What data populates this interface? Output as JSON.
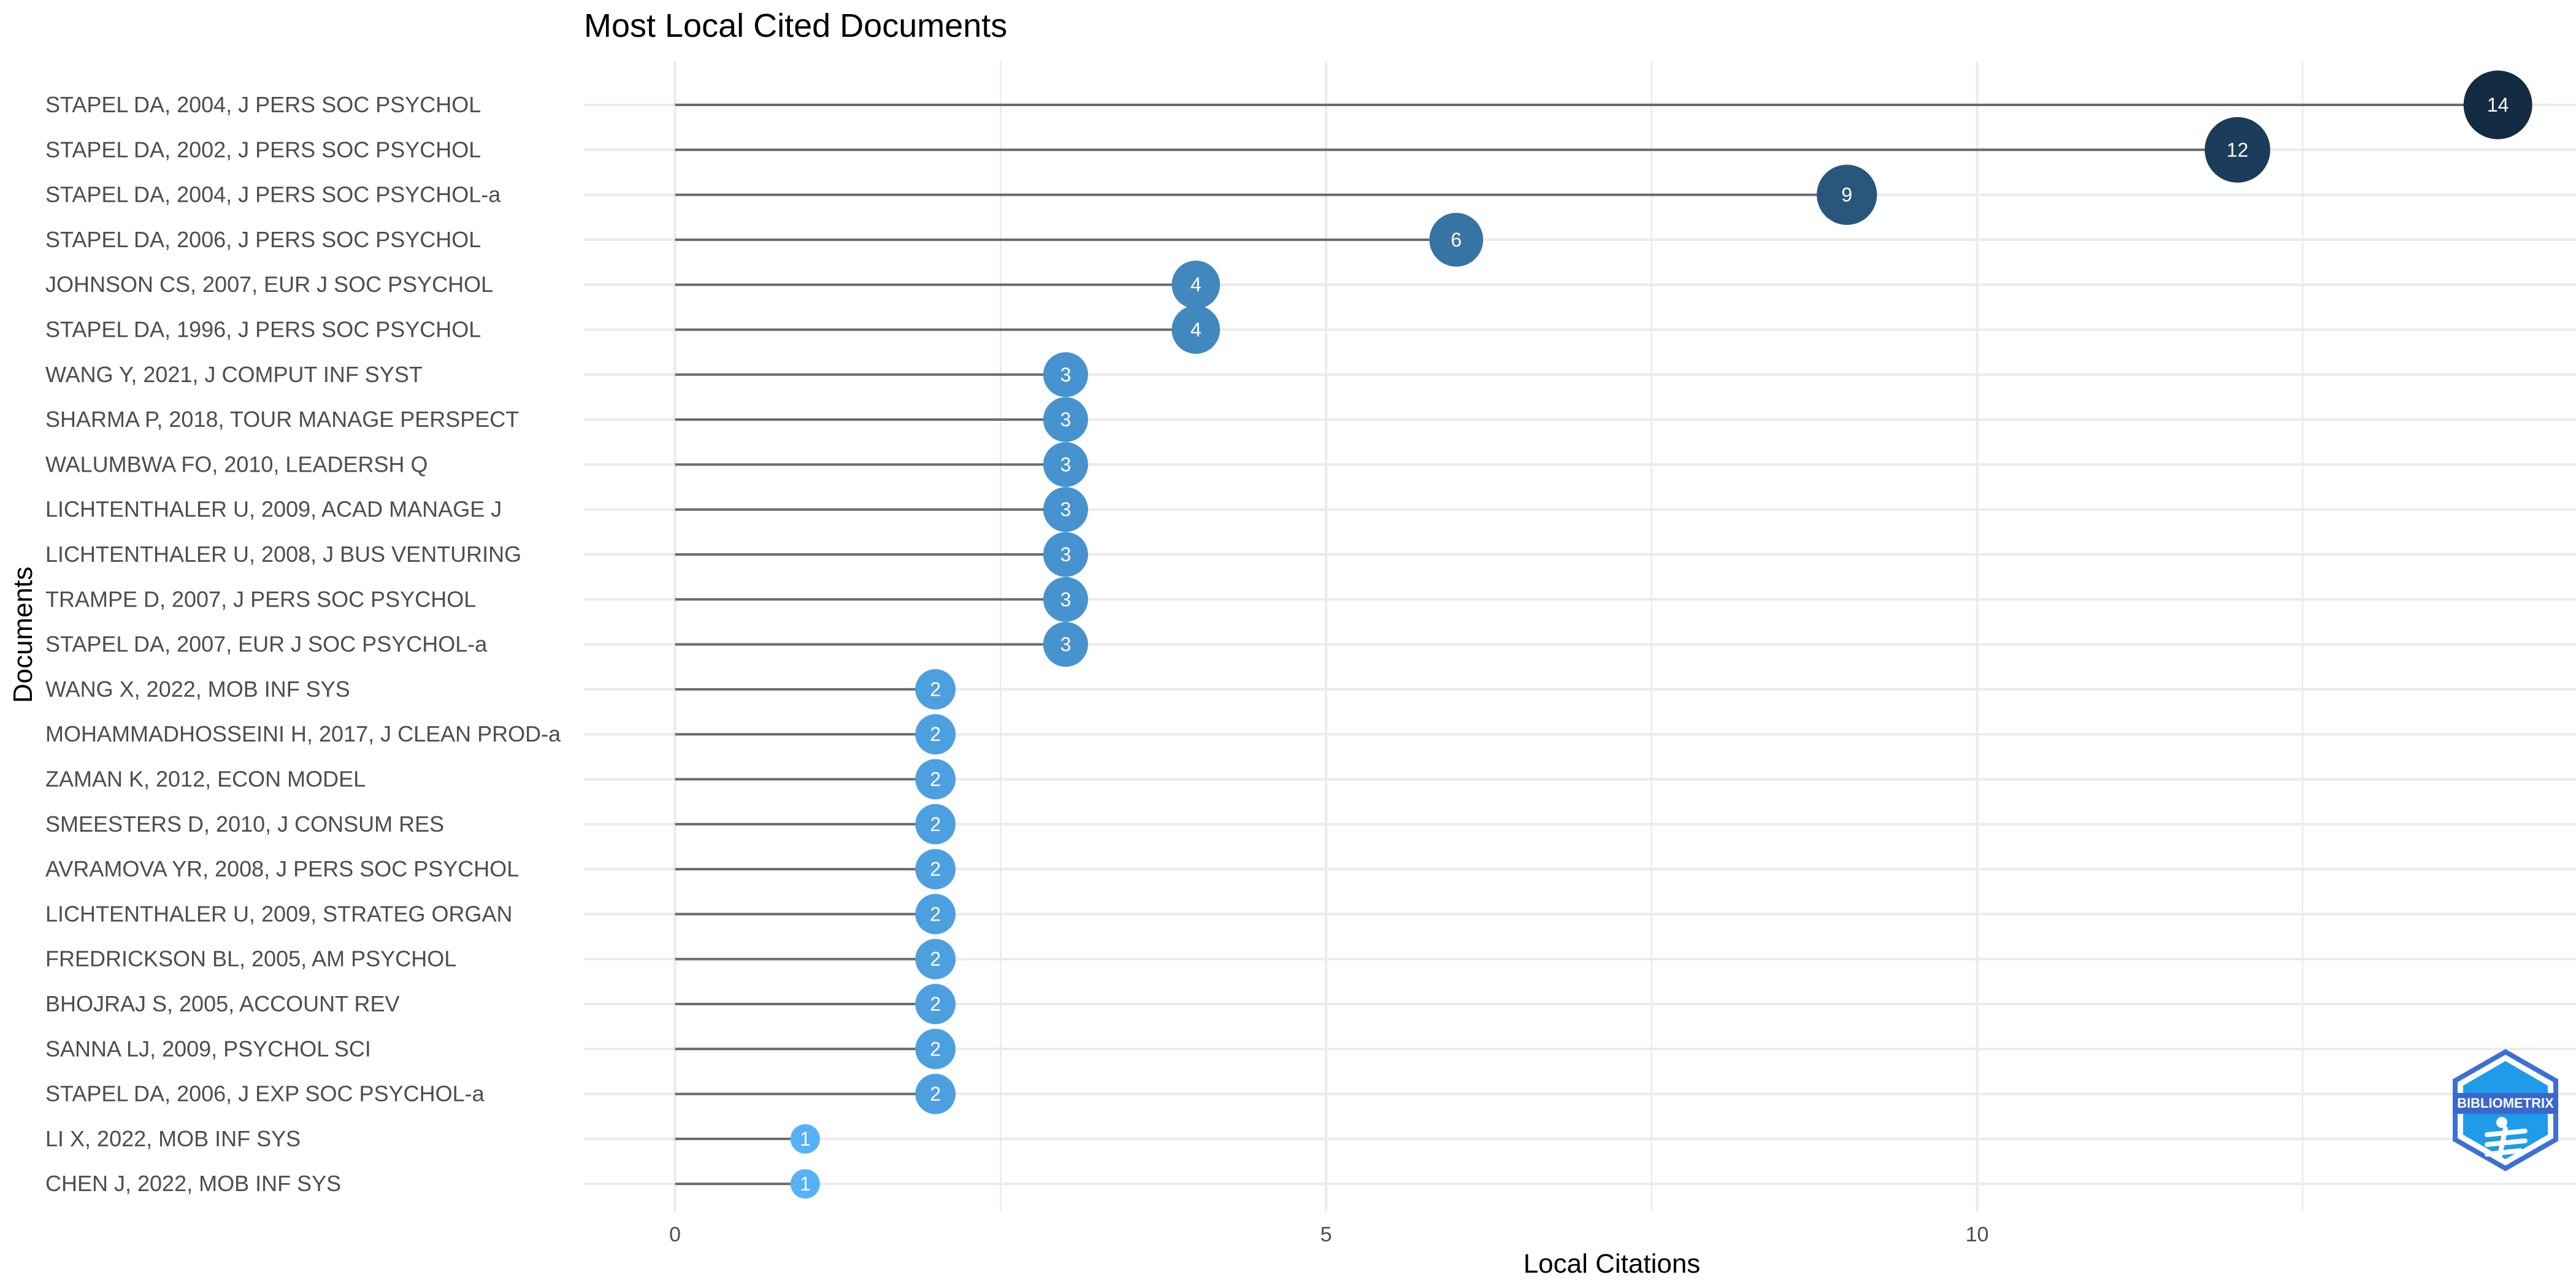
{
  "chart_data": {
    "type": "lollipop",
    "title": "Most Local Cited Documents",
    "xlabel": "Local Citations",
    "ylabel": "Documents",
    "xlim": [
      -0.7,
      14.6
    ],
    "xticks": [
      0,
      5,
      10
    ],
    "grid": true,
    "categories": [
      "STAPEL DA, 2004, J PERS SOC PSYCHOL",
      "STAPEL DA, 2002, J PERS SOC PSYCHOL",
      "STAPEL DA, 2004, J PERS SOC PSYCHOL-a",
      "STAPEL DA, 2006, J PERS SOC PSYCHOL",
      "JOHNSON CS, 2007, EUR J SOC PSYCHOL",
      "STAPEL DA, 1996, J PERS SOC PSYCHOL",
      "WANG Y, 2021, J COMPUT INF SYST",
      "SHARMA P, 2018, TOUR MANAGE PERSPECT",
      "WALUMBWA FO, 2010, LEADERSH Q",
      "LICHTENTHALER U, 2009, ACAD MANAGE J",
      "LICHTENTHALER U, 2008, J BUS VENTURING",
      "TRAMPE D, 2007, J PERS SOC PSYCHOL",
      "STAPEL DA, 2007, EUR J SOC PSYCHOL-a",
      "WANG X, 2022, MOB INF SYS",
      "MOHAMMADHOSSEINI H, 2017, J CLEAN PROD-a",
      "ZAMAN K, 2012, ECON MODEL",
      "SMEESTERS D, 2010, J CONSUM RES",
      "AVRAMOVA YR, 2008, J PERS SOC PSYCHOL",
      "LICHTENTHALER U, 2009, STRATEG ORGAN",
      "FREDRICKSON BL, 2005, AM PSYCHOL",
      "BHOJRAJ S, 2005, ACCOUNT REV",
      "SANNA LJ, 2009, PSYCHOL SCI",
      "STAPEL DA, 2006, J EXP SOC PSYCHOL-a",
      "LI X, 2022, MOB INF SYS",
      "CHEN J, 2022, MOB INF SYS"
    ],
    "values": [
      14,
      12,
      9,
      6,
      4,
      4,
      3,
      3,
      3,
      3,
      3,
      3,
      3,
      2,
      2,
      2,
      2,
      2,
      2,
      2,
      2,
      2,
      2,
      1,
      1
    ],
    "colors": {
      "low": "#56B1F7",
      "high": "#132B43",
      "stem": "#6b6b6b",
      "grid": "#ebebeb"
    }
  },
  "logo": {
    "text": "BIBLIOMETRIX",
    "icon": "bibliometrix-hexagon-logo"
  }
}
